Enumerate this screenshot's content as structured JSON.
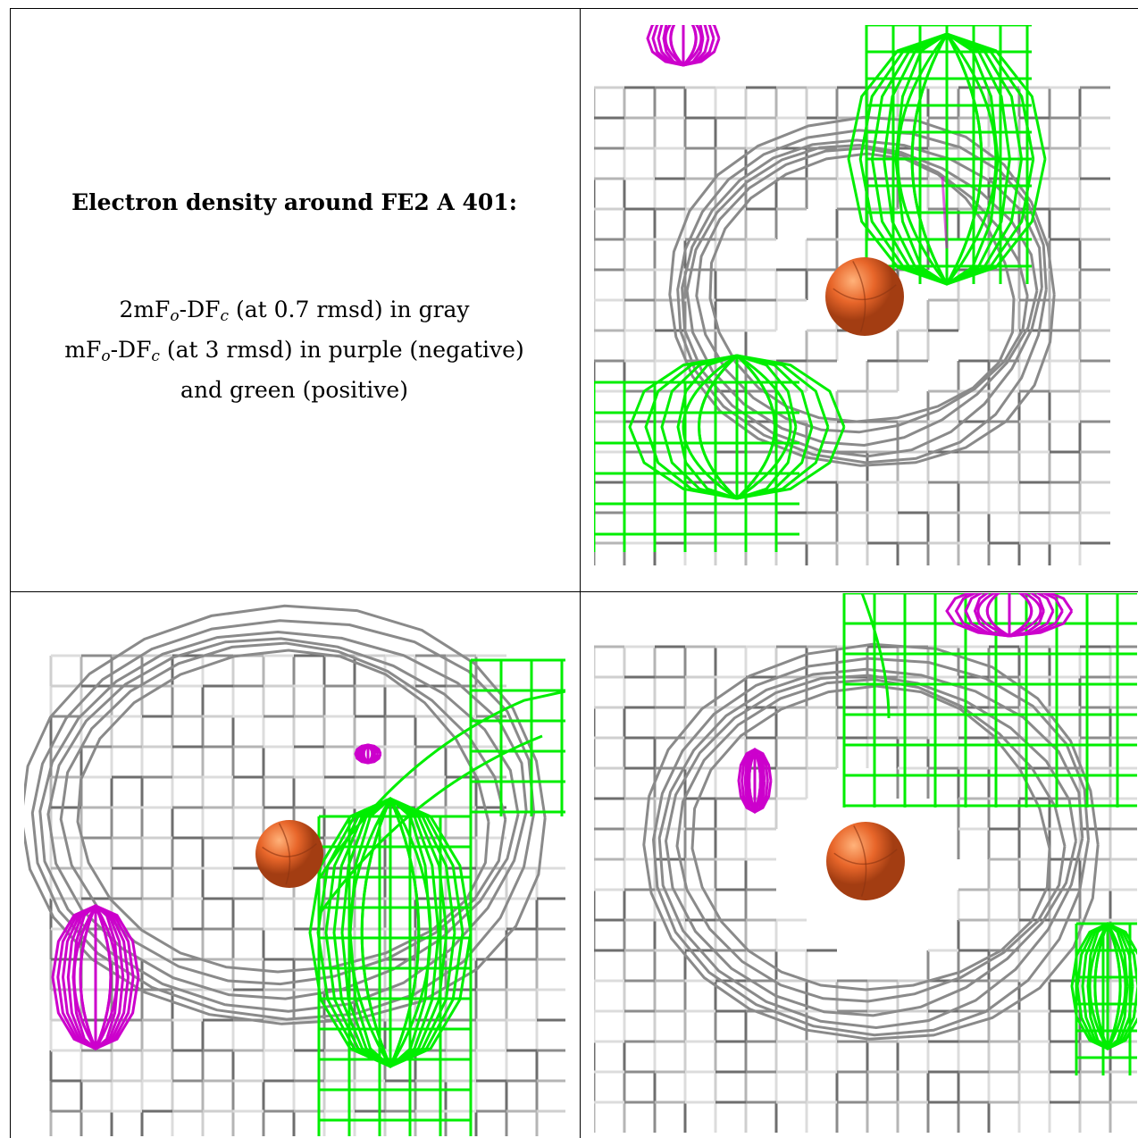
{
  "caption": {
    "title": "Electron density around FE2 A 401:",
    "line1_prefix": "2mF",
    "line1_sub1": "o",
    "line1_mid": "-DF",
    "line1_sub2": "c",
    "line1_suffix": " (at 0.7 rmsd) in gray",
    "line2_prefix": "mF",
    "line2_sub1": "o",
    "line2_mid": "-DF",
    "line2_sub2": "c",
    "line2_suffix": " (at 3 rmsd) in purple (negative)",
    "line3": "and green (positive)"
  },
  "colors": {
    "gray_map": "#9a9a9a",
    "negative_map": "#cc00cc",
    "positive_map": "#00ee00",
    "fe_atom": "#e8662a"
  },
  "panels": [
    {
      "name": "view-1",
      "atom": "FE2 A 401"
    },
    {
      "name": "view-2",
      "atom": "FE2 A 401"
    },
    {
      "name": "view-3",
      "atom": "FE2 A 401"
    }
  ]
}
